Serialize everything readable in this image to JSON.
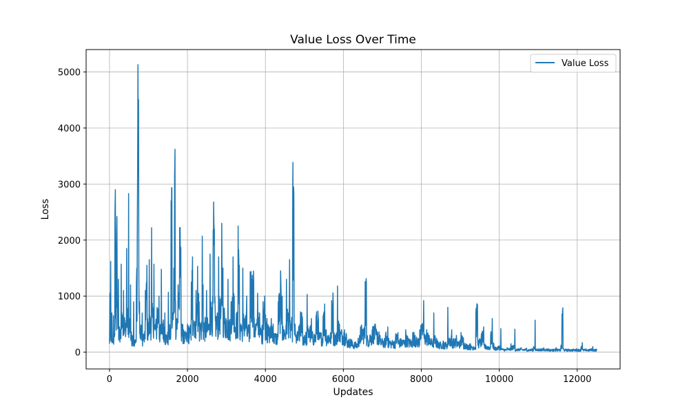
{
  "chart_data": {
    "type": "line",
    "title": "Value Loss Over Time",
    "xlabel": "Updates",
    "ylabel": "Loss",
    "xlim": [
      -600,
      13100
    ],
    "ylim": [
      -300,
      5400
    ],
    "xticks": [
      0,
      2000,
      4000,
      6000,
      8000,
      10000,
      12000
    ],
    "yticks": [
      0,
      1000,
      2000,
      3000,
      4000,
      5000
    ],
    "grid": true,
    "legend_position": "top-right",
    "series": [
      {
        "name": "Value Loss",
        "color": "#1f77b4",
        "x_start": 0,
        "x_end": 12500,
        "points": [
          [
            0,
            150
          ],
          [
            10,
            1050
          ],
          [
            20,
            200
          ],
          [
            30,
            1620
          ],
          [
            45,
            300
          ],
          [
            60,
            700
          ],
          [
            80,
            180
          ],
          [
            100,
            650
          ],
          [
            120,
            280
          ],
          [
            140,
            2500
          ],
          [
            150,
            2900
          ],
          [
            165,
            600
          ],
          [
            180,
            1950
          ],
          [
            190,
            2420
          ],
          [
            200,
            800
          ],
          [
            230,
            1300
          ],
          [
            260,
            400
          ],
          [
            300,
            1570
          ],
          [
            330,
            600
          ],
          [
            360,
            1100
          ],
          [
            400,
            500
          ],
          [
            440,
            1850
          ],
          [
            470,
            700
          ],
          [
            490,
            2830
          ],
          [
            510,
            600
          ],
          [
            540,
            1200
          ],
          [
            580,
            300
          ],
          [
            620,
            900
          ],
          [
            660,
            200
          ],
          [
            690,
            1200
          ],
          [
            700,
            1500
          ],
          [
            712,
            2000
          ],
          [
            722,
            3400
          ],
          [
            730,
            5130
          ],
          [
            738,
            3200
          ],
          [
            745,
            4510
          ],
          [
            752,
            1500
          ],
          [
            770,
            900
          ],
          [
            800,
            400
          ],
          [
            840,
            700
          ],
          [
            880,
            300
          ],
          [
            920,
            1100
          ],
          [
            960,
            1550
          ],
          [
            990,
            500
          ],
          [
            1020,
            1650
          ],
          [
            1050,
            600
          ],
          [
            1080,
            2220
          ],
          [
            1110,
            700
          ],
          [
            1140,
            1570
          ],
          [
            1180,
            500
          ],
          [
            1220,
            800
          ],
          [
            1270,
            1000
          ],
          [
            1310,
            400
          ],
          [
            1330,
            1480
          ],
          [
            1370,
            500
          ],
          [
            1420,
            700
          ],
          [
            1460,
            300
          ],
          [
            1510,
            1070
          ],
          [
            1550,
            400
          ],
          [
            1580,
            2700
          ],
          [
            1600,
            2930
          ],
          [
            1620,
            700
          ],
          [
            1650,
            1500
          ],
          [
            1670,
            3140
          ],
          [
            1680,
            3620
          ],
          [
            1695,
            900
          ],
          [
            1720,
            600
          ],
          [
            1760,
            1200
          ],
          [
            1800,
            2220
          ],
          [
            1830,
            1870
          ],
          [
            1860,
            500
          ],
          [
            1900,
            400
          ],
          [
            1950,
            300
          ],
          [
            2000,
            500
          ],
          [
            2060,
            400
          ],
          [
            2100,
            1250
          ],
          [
            2130,
            1700
          ],
          [
            2170,
            500
          ],
          [
            2220,
            1100
          ],
          [
            2260,
            1530
          ],
          [
            2300,
            900
          ],
          [
            2340,
            500
          ],
          [
            2380,
            2070
          ],
          [
            2400,
            1200
          ],
          [
            2440,
            500
          ],
          [
            2490,
            1100
          ],
          [
            2540,
            500
          ],
          [
            2580,
            1750
          ],
          [
            2620,
            800
          ],
          [
            2660,
            2180
          ],
          [
            2690,
            2200
          ],
          [
            2710,
            800
          ],
          [
            2760,
            600
          ],
          [
            2800,
            1700
          ],
          [
            2840,
            800
          ],
          [
            2880,
            2300
          ],
          [
            2910,
            1500
          ],
          [
            2950,
            700
          ],
          [
            2990,
            600
          ],
          [
            3040,
            1300
          ],
          [
            3080,
            500
          ],
          [
            3120,
            900
          ],
          [
            3170,
            1700
          ],
          [
            3200,
            1000
          ],
          [
            3250,
            600
          ],
          [
            3300,
            2250
          ],
          [
            3330,
            1550
          ],
          [
            3370,
            500
          ],
          [
            3420,
            1500
          ],
          [
            3470,
            600
          ],
          [
            3520,
            1000
          ],
          [
            3570,
            400
          ],
          [
            3610,
            1430
          ],
          [
            3650,
            1300
          ],
          [
            3700,
            1250
          ],
          [
            3760,
            500
          ],
          [
            3800,
            1050
          ],
          [
            3850,
            700
          ],
          [
            3900,
            400
          ],
          [
            3940,
            900
          ],
          [
            3980,
            1000
          ],
          [
            4040,
            600
          ],
          [
            4090,
            400
          ],
          [
            4150,
            600
          ],
          [
            4200,
            500
          ],
          [
            4260,
            300
          ],
          [
            4330,
            900
          ],
          [
            4390,
            1450
          ],
          [
            4430,
            1000
          ],
          [
            4480,
            400
          ],
          [
            4540,
            1300
          ],
          [
            4580,
            700
          ],
          [
            4620,
            1650
          ],
          [
            4660,
            500
          ],
          [
            4700,
            2790
          ],
          [
            4730,
            2800
          ],
          [
            4760,
            500
          ],
          [
            4800,
            300
          ],
          [
            4850,
            400
          ],
          [
            4900,
            720
          ],
          [
            4950,
            600
          ],
          [
            5000,
            300
          ],
          [
            5070,
            1030
          ],
          [
            5110,
            400
          ],
          [
            5180,
            600
          ],
          [
            5250,
            300
          ],
          [
            5300,
            650
          ],
          [
            5360,
            600
          ],
          [
            5420,
            300
          ],
          [
            5480,
            650
          ],
          [
            5520,
            860
          ],
          [
            5560,
            400
          ],
          [
            5620,
            300
          ],
          [
            5700,
            920
          ],
          [
            5740,
            900
          ],
          [
            5790,
            300
          ],
          [
            5850,
            1180
          ],
          [
            5900,
            500
          ],
          [
            5960,
            350
          ],
          [
            6030,
            400
          ],
          [
            6080,
            300
          ],
          [
            6150,
            200
          ],
          [
            6220,
            200
          ],
          [
            6300,
            150
          ],
          [
            6380,
            250
          ],
          [
            6440,
            450
          ],
          [
            6500,
            400
          ],
          [
            6560,
            1260
          ],
          [
            6590,
            1250
          ],
          [
            6620,
            250
          ],
          [
            6680,
            300
          ],
          [
            6740,
            400
          ],
          [
            6820,
            500
          ],
          [
            6880,
            350
          ],
          [
            6940,
            300
          ],
          [
            7000,
            200
          ],
          [
            7080,
            300
          ],
          [
            7140,
            450
          ],
          [
            7200,
            200
          ],
          [
            7280,
            180
          ],
          [
            7340,
            280
          ],
          [
            7400,
            350
          ],
          [
            7470,
            200
          ],
          [
            7540,
            200
          ],
          [
            7600,
            400
          ],
          [
            7660,
            250
          ],
          [
            7720,
            200
          ],
          [
            7780,
            350
          ],
          [
            7840,
            300
          ],
          [
            7900,
            220
          ],
          [
            7960,
            400
          ],
          [
            8020,
            500
          ],
          [
            8060,
            920
          ],
          [
            8080,
            300
          ],
          [
            8140,
            400
          ],
          [
            8200,
            300
          ],
          [
            8260,
            200
          ],
          [
            8320,
            700
          ],
          [
            8360,
            250
          ],
          [
            8420,
            200
          ],
          [
            8500,
            150
          ],
          [
            8560,
            200
          ],
          [
            8620,
            150
          ],
          [
            8680,
            800
          ],
          [
            8720,
            250
          ],
          [
            8780,
            400
          ],
          [
            8840,
            200
          ],
          [
            8900,
            300
          ],
          [
            8960,
            180
          ],
          [
            9020,
            350
          ],
          [
            9080,
            250
          ],
          [
            9140,
            150
          ],
          [
            9200,
            120
          ],
          [
            9260,
            150
          ],
          [
            9340,
            100
          ],
          [
            9400,
            700
          ],
          [
            9440,
            850
          ],
          [
            9480,
            200
          ],
          [
            9540,
            300
          ],
          [
            9600,
            450
          ],
          [
            9660,
            120
          ],
          [
            9720,
            100
          ],
          [
            9780,
            300
          ],
          [
            9820,
            600
          ],
          [
            9860,
            150
          ],
          [
            9920,
            80
          ],
          [
            9980,
            100
          ],
          [
            10040,
            420
          ],
          [
            10080,
            60
          ],
          [
            10140,
            50
          ],
          [
            10200,
            80
          ],
          [
            10250,
            60
          ],
          [
            10300,
            150
          ],
          [
            10360,
            100
          ],
          [
            10400,
            410
          ],
          [
            10440,
            50
          ],
          [
            10500,
            60
          ],
          [
            10560,
            80
          ],
          [
            10640,
            50
          ],
          [
            10700,
            70
          ],
          [
            10760,
            40
          ],
          [
            10820,
            50
          ],
          [
            10880,
            100
          ],
          [
            10920,
            570
          ],
          [
            10950,
            40
          ],
          [
            11000,
            60
          ],
          [
            11080,
            50
          ],
          [
            11140,
            80
          ],
          [
            11200,
            50
          ],
          [
            11260,
            60
          ],
          [
            11340,
            40
          ],
          [
            11400,
            50
          ],
          [
            11460,
            80
          ],
          [
            11520,
            40
          ],
          [
            11580,
            100
          ],
          [
            11610,
            680
          ],
          [
            11630,
            790
          ],
          [
            11650,
            60
          ],
          [
            11700,
            40
          ],
          [
            11760,
            50
          ],
          [
            11840,
            30
          ],
          [
            11920,
            40
          ],
          [
            11980,
            60
          ],
          [
            12040,
            30
          ],
          [
            12100,
            100
          ],
          [
            12130,
            170
          ],
          [
            12160,
            30
          ],
          [
            12220,
            40
          ],
          [
            12280,
            20
          ],
          [
            12340,
            50
          ],
          [
            12400,
            100
          ],
          [
            12440,
            20
          ],
          [
            12500,
            25
          ]
        ]
      }
    ]
  }
}
